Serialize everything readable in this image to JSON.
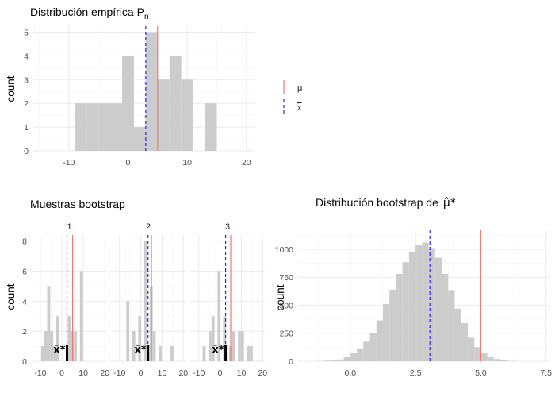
{
  "style": {
    "bar_fill": "#cccccc",
    "grid_major": "#ebebeb",
    "grid_minor": "#f5f5f5",
    "mu_color": "#f8766d",
    "xbar_color": "#1f1fff",
    "axis_text": "#4d4d4d"
  },
  "legend": {
    "items": [
      {
        "label": "μ",
        "color": "#f8766d",
        "linetype": "solid"
      },
      {
        "label": "x",
        "color": "#1f1fff",
        "linetype": "dashed",
        "overline": true
      }
    ]
  },
  "chart_data": [
    {
      "id": "empirical",
      "type": "bar",
      "title": "Distribución empírica P",
      "title_subscript": "n",
      "xlabel": "",
      "ylabel": "count",
      "xlim": [
        -16,
        21.5
      ],
      "ylim": [
        0,
        5.25
      ],
      "xticks": [
        -10,
        0,
        10,
        20
      ],
      "yticks": [
        0,
        1,
        2,
        3,
        4,
        5
      ],
      "bin_width": 2,
      "bins": [
        {
          "x0": -9,
          "count": 2
        },
        {
          "x0": -7,
          "count": 2
        },
        {
          "x0": -5,
          "count": 2
        },
        {
          "x0": -3,
          "count": 2
        },
        {
          "x0": -1,
          "count": 4
        },
        {
          "x0": 1,
          "count": 1
        },
        {
          "x0": 3,
          "count": 5
        },
        {
          "x0": 5,
          "count": 3
        },
        {
          "x0": 7,
          "count": 4
        },
        {
          "x0": 9,
          "count": 3
        },
        {
          "x0": 13,
          "count": 2
        }
      ],
      "mu": 5,
      "xbar": 3
    },
    {
      "id": "bootstrap_samples",
      "type": "bar",
      "title": "Muestras bootstrap",
      "ylabel": "count",
      "xlim": [
        -14,
        21
      ],
      "ylim": [
        0,
        8.4
      ],
      "xticks": [
        -10,
        0,
        10,
        20
      ],
      "yticks": [
        0,
        2,
        4,
        6,
        8
      ],
      "bin_width": 1.4,
      "panels": [
        {
          "label": "1",
          "xbar": 2.4,
          "mu": 5,
          "bins": [
            {
              "x0": -9.6,
              "count": 1
            },
            {
              "x0": -8.2,
              "count": 2
            },
            {
              "x0": -6.8,
              "count": 5
            },
            {
              "x0": -5.4,
              "count": 2
            },
            {
              "x0": -4.0,
              "count": 1
            },
            {
              "x0": -2.6,
              "count": 3
            },
            {
              "x0": 2.8,
              "count": 3
            },
            {
              "x0": 4.2,
              "count": 2
            },
            {
              "x0": 5.6,
              "count": 2
            },
            {
              "x0": 8.4,
              "count": 6
            }
          ]
        },
        {
          "label": "2",
          "xbar": 3.4,
          "mu": 5,
          "bins": [
            {
              "x0": -6.8,
              "count": 4
            },
            {
              "x0": -4.0,
              "count": 2
            },
            {
              "x0": -1.2,
              "count": 3
            },
            {
              "x0": 1.4,
              "count": 8
            },
            {
              "x0": 4.2,
              "count": 5
            },
            {
              "x0": 5.6,
              "count": 2
            },
            {
              "x0": 8.4,
              "count": 1
            },
            {
              "x0": 14.0,
              "count": 1
            }
          ]
        },
        {
          "label": "3",
          "xbar": 2.6,
          "mu": 5,
          "bins": [
            {
              "x0": -8.2,
              "count": 1
            },
            {
              "x0": -5.4,
              "count": 2
            },
            {
              "x0": -4.0,
              "count": 3
            },
            {
              "x0": -1.2,
              "count": 6
            },
            {
              "x0": 1.4,
              "count": 3
            },
            {
              "x0": 4.2,
              "count": 1
            },
            {
              "x0": 5.6,
              "count": 2
            },
            {
              "x0": 8.4,
              "count": 2
            },
            {
              "x0": 9.8,
              "count": 2
            },
            {
              "x0": 12.6,
              "count": 1
            },
            {
              "x0": 14.0,
              "count": 1
            }
          ]
        }
      ],
      "annotation": "x̄*"
    },
    {
      "id": "bootstrap_distribution",
      "type": "bar",
      "title": "Distribución bootstrap de",
      "title_symbol": "μ̂*",
      "xlabel": "",
      "ylabel": "count",
      "xlim": [
        -2,
        7.6
      ],
      "ylim": [
        0,
        1170
      ],
      "xticks": [
        0.0,
        2.5,
        5.0,
        7.5
      ],
      "xtick_labels": [
        "0.0",
        "2.5",
        "5.0",
        "7.5"
      ],
      "yticks": [
        0,
        250,
        500,
        750,
        1000
      ],
      "bin_width": 0.25,
      "bins": [
        {
          "x0": -1.5,
          "count": 0
        },
        {
          "x0": -1.25,
          "count": 2
        },
        {
          "x0": -1.0,
          "count": 5
        },
        {
          "x0": -0.75,
          "count": 10
        },
        {
          "x0": -0.5,
          "count": 16
        },
        {
          "x0": -0.25,
          "count": 35
        },
        {
          "x0": 0.0,
          "count": 70
        },
        {
          "x0": 0.25,
          "count": 115
        },
        {
          "x0": 0.5,
          "count": 175
        },
        {
          "x0": 0.75,
          "count": 250
        },
        {
          "x0": 1.0,
          "count": 365
        },
        {
          "x0": 1.25,
          "count": 510
        },
        {
          "x0": 1.5,
          "count": 640
        },
        {
          "x0": 1.75,
          "count": 780
        },
        {
          "x0": 2.0,
          "count": 885
        },
        {
          "x0": 2.25,
          "count": 975
        },
        {
          "x0": 2.5,
          "count": 1035
        },
        {
          "x0": 2.75,
          "count": 1060
        },
        {
          "x0": 3.0,
          "count": 1010
        },
        {
          "x0": 3.25,
          "count": 925
        },
        {
          "x0": 3.5,
          "count": 780
        },
        {
          "x0": 3.75,
          "count": 635
        },
        {
          "x0": 4.0,
          "count": 470
        },
        {
          "x0": 4.25,
          "count": 340
        },
        {
          "x0": 4.5,
          "count": 210
        },
        {
          "x0": 4.75,
          "count": 125
        },
        {
          "x0": 5.0,
          "count": 70
        },
        {
          "x0": 5.25,
          "count": 40
        },
        {
          "x0": 5.5,
          "count": 20
        },
        {
          "x0": 5.75,
          "count": 8
        },
        {
          "x0": 6.0,
          "count": 3
        },
        {
          "x0": 6.25,
          "count": 1
        }
      ],
      "mu": 5,
      "xbar": 3.05
    }
  ]
}
